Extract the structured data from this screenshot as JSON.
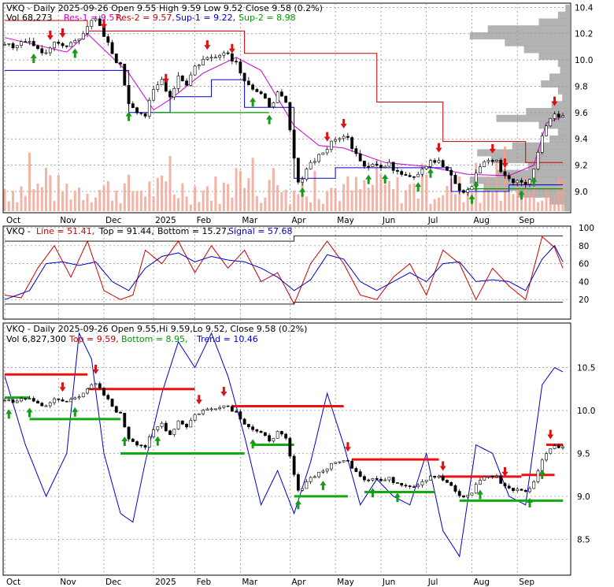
{
  "chart_data": [
    {
      "type": "candlestick",
      "panel": "price",
      "header": {
        "title": "VKQ - Daily 2025-09-26 Open 9.55  High 9.59  Low 9.52  Close 9.58 (0.2%)",
        "vol": "Vol 68,273",
        "res1": "Res-1 = 9.57,",
        "res2": "Res-2 = 9.57,",
        "sup1": "Sup-1 = 9.22,",
        "sup2": "Sup-2 = 8.98"
      },
      "ylim": [
        8.85,
        10.42
      ],
      "y_ticks": [
        "10.4",
        "10.2",
        "10.0",
        "9.8",
        "9.6",
        "9.4",
        "9.2",
        "9.0"
      ],
      "x_ticks": [
        "Oct",
        "Nov",
        "Dec",
        "2025",
        "Feb",
        "Mar",
        "Apr",
        "May",
        "Jun",
        "Jul",
        "Aug",
        "Sep"
      ],
      "close_path": [
        [
          0,
          10.13
        ],
        [
          3,
          10.1
        ],
        [
          6,
          10.15
        ],
        [
          9,
          10.05
        ],
        [
          12,
          10.12
        ],
        [
          15,
          10.1
        ],
        [
          18,
          10.18
        ],
        [
          20,
          10.26
        ],
        [
          22,
          10.3
        ],
        [
          24,
          10.18
        ],
        [
          26,
          10.05
        ],
        [
          28,
          9.95
        ],
        [
          30,
          9.68
        ],
        [
          32,
          9.62
        ],
        [
          34,
          9.58
        ],
        [
          36,
          9.76
        ],
        [
          38,
          9.85
        ],
        [
          40,
          9.72
        ],
        [
          42,
          9.88
        ],
        [
          44,
          9.82
        ],
        [
          46,
          9.95
        ],
        [
          48,
          10.0
        ],
        [
          50,
          10.02
        ],
        [
          52,
          10.06
        ],
        [
          54,
          10.05
        ],
        [
          56,
          9.98
        ],
        [
          58,
          9.86
        ],
        [
          60,
          9.78
        ],
        [
          62,
          9.72
        ],
        [
          64,
          9.66
        ],
        [
          66,
          9.74
        ],
        [
          68,
          9.66
        ],
        [
          70,
          9.25
        ],
        [
          71,
          9.05
        ],
        [
          73,
          9.18
        ],
        [
          75,
          9.25
        ],
        [
          77,
          9.3
        ],
        [
          79,
          9.36
        ],
        [
          81,
          9.42
        ],
        [
          83,
          9.4
        ],
        [
          85,
          9.3
        ],
        [
          87,
          9.2
        ],
        [
          89,
          9.22
        ],
        [
          91,
          9.18
        ],
        [
          93,
          9.2
        ],
        [
          95,
          9.16
        ],
        [
          97,
          9.14
        ],
        [
          99,
          9.12
        ],
        [
          101,
          9.18
        ],
        [
          103,
          9.24
        ],
        [
          105,
          9.22
        ],
        [
          107,
          9.16
        ],
        [
          109,
          9.05
        ],
        [
          111,
          8.98
        ],
        [
          113,
          9.05
        ],
        [
          115,
          9.2
        ],
        [
          117,
          9.24
        ],
        [
          119,
          9.22
        ],
        [
          121,
          9.12
        ],
        [
          123,
          9.08
        ],
        [
          125,
          9.06
        ],
        [
          127,
          9.08
        ],
        [
          129,
          9.3
        ],
        [
          131,
          9.52
        ],
        [
          133,
          9.6
        ],
        [
          135,
          9.58
        ]
      ],
      "res_line": [
        [
          0,
          10.3
        ],
        [
          20,
          10.3
        ],
        [
          20,
          10.22
        ],
        [
          58,
          10.22
        ],
        [
          58,
          10.05
        ],
        [
          90,
          10.05
        ],
        [
          90,
          9.68
        ],
        [
          106,
          9.68
        ],
        [
          106,
          9.38
        ],
        [
          126,
          9.38
        ],
        [
          126,
          9.22
        ],
        [
          135,
          9.22
        ]
      ],
      "ma_line": [
        [
          0,
          10.17
        ],
        [
          15,
          10.06
        ],
        [
          20,
          10.2
        ],
        [
          30,
          9.9
        ],
        [
          36,
          9.62
        ],
        [
          40,
          9.7
        ],
        [
          48,
          9.9
        ],
        [
          56,
          10.02
        ],
        [
          62,
          9.92
        ],
        [
          70,
          9.5
        ],
        [
          76,
          9.35
        ],
        [
          82,
          9.33
        ],
        [
          92,
          9.22
        ],
        [
          102,
          9.19
        ],
        [
          112,
          9.13
        ],
        [
          122,
          9.12
        ],
        [
          128,
          9.2
        ],
        [
          131,
          9.52
        ],
        [
          135,
          9.57
        ]
      ],
      "sup_line": [
        [
          0,
          9.92
        ],
        [
          30,
          9.92
        ],
        [
          30,
          9.6
        ],
        [
          40,
          9.6
        ],
        [
          40,
          9.72
        ],
        [
          50,
          9.72
        ],
        [
          50,
          9.85
        ],
        [
          58,
          9.85
        ],
        [
          58,
          9.64
        ],
        [
          70,
          9.64
        ],
        [
          70,
          9.1
        ],
        [
          80,
          9.1
        ],
        [
          80,
          9.18
        ],
        [
          108,
          9.18
        ],
        [
          108,
          9.0
        ],
        [
          122,
          9.0
        ],
        [
          122,
          9.05
        ],
        [
          135,
          9.05
        ]
      ],
      "green_line": [
        [
          36,
          9.6
        ],
        [
          64,
          9.6
        ],
        [
          112,
          9.02
        ],
        [
          135,
          9.02
        ]
      ],
      "up_arrows": [
        7,
        17,
        30,
        60,
        64,
        72,
        88,
        92,
        100,
        103,
        113,
        114,
        125,
        128
      ],
      "down_arrows": [
        11,
        14,
        24,
        39,
        49,
        55,
        78,
        82,
        105,
        118,
        121,
        133
      ],
      "volume_profile": [
        0.05,
        0.12,
        0.3,
        0.78,
        0.95,
        0.62,
        0.44,
        0.3,
        0.12,
        0.1,
        0.2,
        0.28,
        0.12,
        0.08,
        0.18,
        0.42,
        0.7,
        0.3,
        0.12,
        0.2,
        0.55,
        0.88,
        0.75,
        0.4,
        0.7,
        0.95,
        0.82,
        0.5,
        0.2,
        0.06
      ],
      "colors": {
        "res": "#cc0000",
        "sup": "#0000cc",
        "ma": "#cc00cc",
        "green": "#009900",
        "volume": "#f0a090",
        "profile": "#999999"
      }
    },
    {
      "type": "line",
      "panel": "oscillator",
      "header": {
        "name": "VKQ - ",
        "line": "Line = 51.41,",
        "top": "Top = 91.44,",
        "bottom": "Bottom = 15.27,",
        "signal": "Signal = 57.68"
      },
      "ylim": [
        0,
        100
      ],
      "y_ticks": [
        "100",
        "80",
        "60",
        "40",
        "20"
      ],
      "series": [
        {
          "color": "#cc0000",
          "values": [
            [
              0,
              25
            ],
            [
              4,
              22
            ],
            [
              8,
              55
            ],
            [
              12,
              80
            ],
            [
              16,
              45
            ],
            [
              20,
              85
            ],
            [
              24,
              30
            ],
            [
              28,
              20
            ],
            [
              31,
              25
            ],
            [
              34,
              75
            ],
            [
              38,
              60
            ],
            [
              42,
              85
            ],
            [
              46,
              50
            ],
            [
              50,
              80
            ],
            [
              54,
              55
            ],
            [
              58,
              75
            ],
            [
              62,
              40
            ],
            [
              66,
              50
            ],
            [
              70,
              15
            ],
            [
              74,
              60
            ],
            [
              78,
              85
            ],
            [
              82,
              60
            ],
            [
              86,
              25
            ],
            [
              90,
              20
            ],
            [
              94,
              45
            ],
            [
              98,
              60
            ],
            [
              102,
              25
            ],
            [
              106,
              75
            ],
            [
              110,
              60
            ],
            [
              114,
              20
            ],
            [
              118,
              55
            ],
            [
              122,
              35
            ],
            [
              126,
              20
            ],
            [
              130,
              90
            ],
            [
              133,
              78
            ],
            [
              135,
              55
            ]
          ]
        },
        {
          "color": "#0000cc",
          "values": [
            [
              0,
              20
            ],
            [
              6,
              30
            ],
            [
              10,
              60
            ],
            [
              14,
              62
            ],
            [
              18,
              58
            ],
            [
              22,
              62
            ],
            [
              26,
              40
            ],
            [
              30,
              30
            ],
            [
              34,
              55
            ],
            [
              38,
              68
            ],
            [
              42,
              72
            ],
            [
              46,
              62
            ],
            [
              50,
              68
            ],
            [
              54,
              64
            ],
            [
              58,
              62
            ],
            [
              62,
              55
            ],
            [
              66,
              45
            ],
            [
              70,
              30
            ],
            [
              74,
              42
            ],
            [
              78,
              70
            ],
            [
              82,
              65
            ],
            [
              86,
              40
            ],
            [
              90,
              30
            ],
            [
              94,
              40
            ],
            [
              98,
              50
            ],
            [
              102,
              40
            ],
            [
              106,
              60
            ],
            [
              110,
              62
            ],
            [
              114,
              40
            ],
            [
              118,
              42
            ],
            [
              122,
              40
            ],
            [
              126,
              30
            ],
            [
              130,
              65
            ],
            [
              133,
              80
            ],
            [
              135,
              62
            ]
          ]
        }
      ],
      "top_line": [
        [
          0,
          85
        ],
        [
          70,
          85
        ],
        [
          70,
          91
        ],
        [
          135,
          91
        ]
      ],
      "bottom_line": [
        [
          0,
          15
        ],
        [
          70,
          15
        ],
        [
          70,
          17
        ],
        [
          135,
          17
        ]
      ]
    },
    {
      "type": "candlestick",
      "panel": "price_bands",
      "header": {
        "title": "VKQ - Daily 2025-09-26 Open 9.55,Hi 9.59,Lo 9.52, Close 9.58 (0.2%)",
        "vol": "Vol 6,827,300",
        "top": "Top = 9.59,",
        "bottom": "Bottom = 8.95,",
        "trend": "Trend = 10.46"
      },
      "ylim": [
        8.1,
        11.0
      ],
      "y_ticks": [
        "10.5",
        "10.0",
        "9.5",
        "9.0",
        "8.5"
      ],
      "x_ticks": [
        "Oct",
        "Nov",
        "Dec",
        "2025",
        "Feb",
        "Mar",
        "Apr",
        "May",
        "Jun",
        "Jul",
        "Aug",
        "Sep"
      ],
      "band_path": [
        [
          0,
          10.4
        ],
        [
          5,
          9.6
        ],
        [
          10,
          9.0
        ],
        [
          15,
          9.5
        ],
        [
          18,
          10.9
        ],
        [
          21,
          10.6
        ],
        [
          24,
          9.5
        ],
        [
          28,
          8.8
        ],
        [
          31,
          8.7
        ],
        [
          34,
          9.4
        ],
        [
          38,
          10.2
        ],
        [
          42,
          10.8
        ],
        [
          46,
          10.5
        ],
        [
          50,
          10.9
        ],
        [
          54,
          10.4
        ],
        [
          58,
          9.7
        ],
        [
          62,
          8.9
        ],
        [
          66,
          9.3
        ],
        [
          70,
          8.8
        ],
        [
          74,
          9.4
        ],
        [
          78,
          10.2
        ],
        [
          82,
          9.6
        ],
        [
          86,
          8.9
        ],
        [
          90,
          9.2
        ],
        [
          94,
          9.0
        ],
        [
          98,
          8.9
        ],
        [
          102,
          9.5
        ],
        [
          106,
          8.6
        ],
        [
          110,
          8.3
        ],
        [
          114,
          9.6
        ],
        [
          118,
          9.5
        ],
        [
          122,
          9.0
        ],
        [
          126,
          8.9
        ],
        [
          130,
          10.3
        ],
        [
          133,
          10.5
        ],
        [
          135,
          10.45
        ]
      ],
      "red_segments": [
        [
          0,
          20,
          10.42
        ],
        [
          20,
          46,
          10.25
        ],
        [
          55,
          82,
          10.05
        ],
        [
          84,
          105,
          9.43
        ],
        [
          105,
          125,
          9.23
        ],
        [
          125,
          133,
          9.25
        ],
        [
          131,
          135,
          9.6
        ]
      ],
      "green_segments": [
        [
          0,
          6,
          10.15
        ],
        [
          6,
          28,
          9.9
        ],
        [
          28,
          58,
          9.5
        ],
        [
          60,
          70,
          9.6
        ],
        [
          70,
          83,
          9.0
        ],
        [
          87,
          104,
          9.05
        ],
        [
          110,
          135,
          8.95
        ]
      ],
      "up_arrows": [
        1,
        6,
        17,
        29,
        37,
        60,
        71,
        77,
        89,
        95,
        115,
        127,
        130
      ],
      "down_arrows": [
        14,
        22,
        47,
        53,
        83,
        106,
        121,
        132
      ]
    }
  ]
}
